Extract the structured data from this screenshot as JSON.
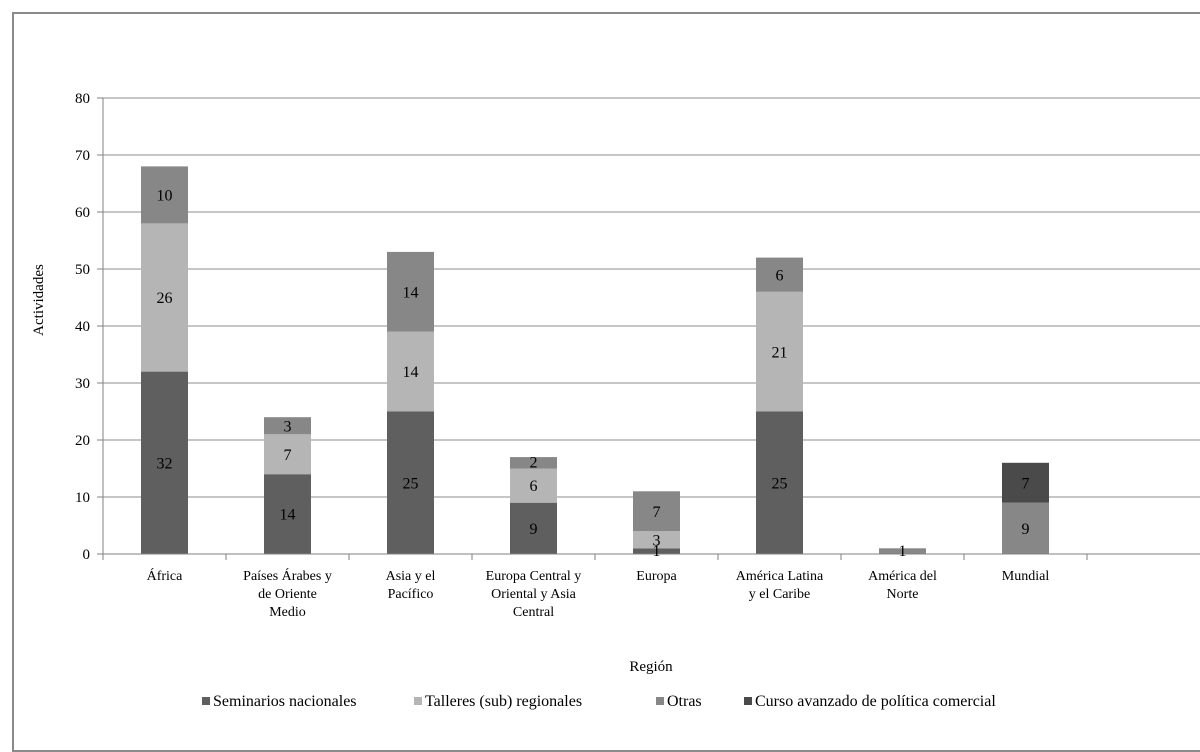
{
  "chart_data": {
    "type": "bar",
    "stacked": true,
    "categories": [
      [
        "África"
      ],
      [
        "Países Árabes y",
        "de Oriente",
        "Medio"
      ],
      [
        "Asia y el",
        "Pacífico"
      ],
      [
        "Europa Central y",
        "Oriental y Asia",
        "Central"
      ],
      [
        "Europa"
      ],
      [
        "América Latina",
        "y el Caribe"
      ],
      [
        "América del",
        "Norte"
      ],
      [
        "Mundial"
      ],
      [
        ""
      ]
    ],
    "series": [
      {
        "name": "Seminarios nacionales",
        "color": "#5f5f5f",
        "values": [
          32,
          14,
          25,
          9,
          1,
          25,
          0,
          0,
          0
        ],
        "labels": [
          "32",
          "14",
          "25",
          "9",
          "1",
          "25",
          "",
          "",
          ""
        ]
      },
      {
        "name": "Talleres (sub) regionales",
        "color": "#b5b5b5",
        "values": [
          26,
          7,
          14,
          6,
          3,
          21,
          0,
          0,
          0
        ],
        "labels": [
          "26",
          "7",
          "14",
          "6",
          "3",
          "21",
          "",
          "",
          ""
        ]
      },
      {
        "name": "Otras",
        "color": "#878787",
        "values": [
          10,
          3,
          14,
          2,
          7,
          6,
          1,
          9,
          0
        ],
        "labels": [
          "10",
          "3",
          "14",
          "2",
          "7",
          "6",
          "1",
          "9",
          ""
        ]
      },
      {
        "name": "Curso avanzado de política comercial",
        "color": "#4a4a4a",
        "values": [
          0,
          0,
          0,
          0,
          0,
          0,
          0,
          7,
          0
        ],
        "labels": [
          "",
          "",
          "",
          "",
          "",
          "",
          "",
          "7",
          ""
        ]
      }
    ],
    "xlabel": "Región",
    "ylabel": "Actividades",
    "ylim": [
      0,
      80
    ],
    "yticks": [
      0,
      10,
      20,
      30,
      40,
      50,
      60,
      70,
      80
    ],
    "grid": true,
    "legend_position": "bottom"
  }
}
